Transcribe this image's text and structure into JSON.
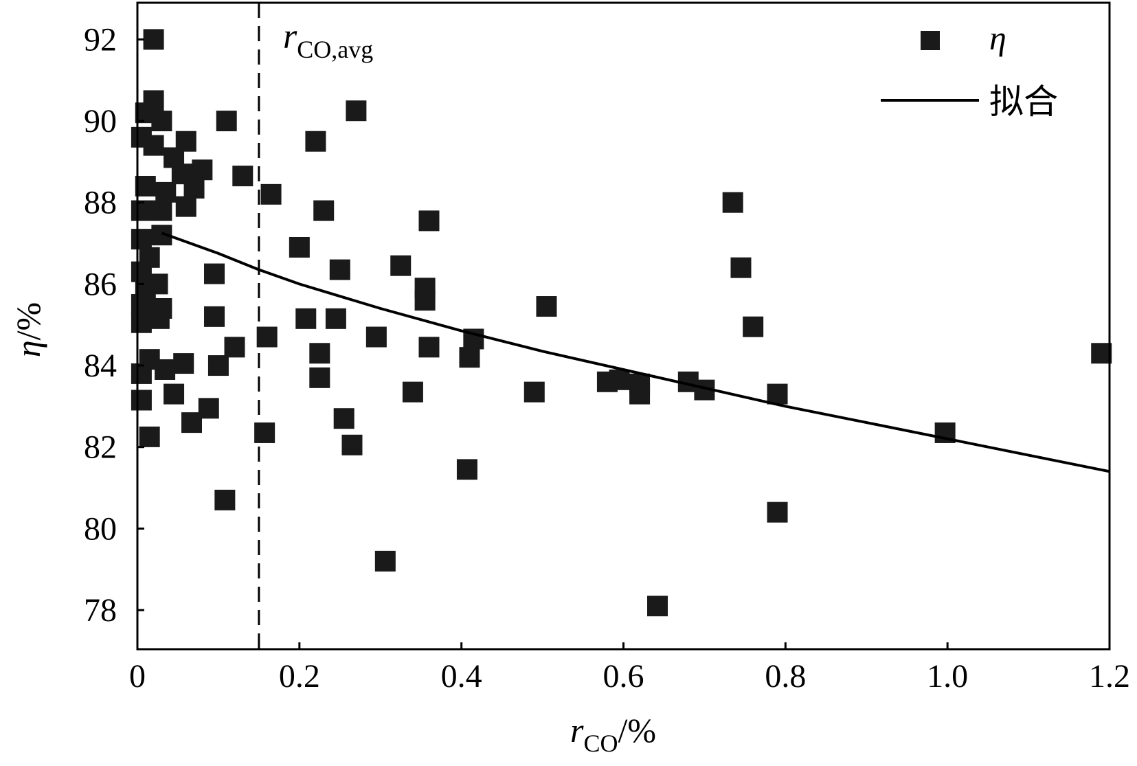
{
  "chart_data": {
    "type": "scatter",
    "title": "",
    "xlabel": {
      "main": "r",
      "sub": "CO",
      "suffix": "/%"
    },
    "ylabel": {
      "main": "η",
      "suffix": "/%"
    },
    "xlim": [
      0,
      1.2
    ],
    "ylim": [
      77.04,
      92.9
    ],
    "xticks": [
      0,
      0.2,
      0.4,
      0.6,
      0.8,
      1.0,
      1.2
    ],
    "xtick_labels": [
      "0",
      "0.2",
      "0.4",
      "0.6",
      "0.8",
      "1.0",
      "1.2"
    ],
    "yticks": [
      78,
      80,
      82,
      84,
      86,
      88,
      90,
      92
    ],
    "ytick_labels": [
      "78",
      "80",
      "82",
      "84",
      "86",
      "88",
      "90",
      "92"
    ],
    "grid": false,
    "legend": {
      "placement": "top-right",
      "entries": [
        {
          "label": "η",
          "marker": "square"
        },
        {
          "label": "拟合",
          "marker": "line"
        }
      ]
    },
    "reference_line": {
      "x": 0.15,
      "style": "dashed",
      "label_main": "r",
      "label_sub": "CO,avg"
    },
    "series": [
      {
        "name": "η",
        "kind": "scatter",
        "points": [
          [
            0.02,
            92.0
          ],
          [
            0.02,
            90.5
          ],
          [
            0.01,
            90.2
          ],
          [
            0.03,
            90.0
          ],
          [
            0.11,
            90.0
          ],
          [
            0.27,
            90.25
          ],
          [
            0.22,
            89.5
          ],
          [
            0.06,
            89.5
          ],
          [
            0.005,
            89.6
          ],
          [
            0.02,
            89.4
          ],
          [
            0.045,
            89.1
          ],
          [
            0.08,
            88.8
          ],
          [
            0.13,
            88.65
          ],
          [
            0.055,
            88.7
          ],
          [
            0.07,
            88.35
          ],
          [
            0.165,
            88.2
          ],
          [
            0.01,
            88.4
          ],
          [
            0.035,
            88.25
          ],
          [
            0.06,
            87.9
          ],
          [
            0.03,
            87.8
          ],
          [
            0.005,
            87.8
          ],
          [
            0.23,
            87.8
          ],
          [
            0.36,
            87.55
          ],
          [
            0.735,
            88.0
          ],
          [
            0.03,
            87.2
          ],
          [
            0.005,
            87.1
          ],
          [
            0.2,
            86.9
          ],
          [
            0.325,
            86.45
          ],
          [
            0.015,
            86.65
          ],
          [
            0.745,
            86.4
          ],
          [
            0.25,
            86.35
          ],
          [
            0.095,
            86.25
          ],
          [
            0.005,
            86.3
          ],
          [
            0.025,
            86.0
          ],
          [
            0.355,
            85.9
          ],
          [
            0.01,
            85.85
          ],
          [
            0.355,
            85.6
          ],
          [
            0.03,
            85.4
          ],
          [
            0.005,
            85.5
          ],
          [
            0.505,
            85.45
          ],
          [
            0.027,
            85.15
          ],
          [
            0.095,
            85.2
          ],
          [
            0.208,
            85.15
          ],
          [
            0.245,
            85.15
          ],
          [
            0.005,
            85.05
          ],
          [
            0.76,
            84.95
          ],
          [
            0.16,
            84.7
          ],
          [
            0.295,
            84.7
          ],
          [
            0.415,
            84.65
          ],
          [
            0.12,
            84.45
          ],
          [
            0.36,
            84.45
          ],
          [
            0.225,
            84.3
          ],
          [
            0.41,
            84.2
          ],
          [
            1.19,
            84.3
          ],
          [
            0.015,
            84.15
          ],
          [
            0.057,
            84.05
          ],
          [
            0.1,
            84.0
          ],
          [
            0.034,
            83.9
          ],
          [
            0.005,
            83.8
          ],
          [
            0.225,
            83.7
          ],
          [
            0.58,
            83.6
          ],
          [
            0.595,
            83.65
          ],
          [
            0.62,
            83.55
          ],
          [
            0.68,
            83.6
          ],
          [
            0.7,
            83.4
          ],
          [
            0.62,
            83.3
          ],
          [
            0.34,
            83.35
          ],
          [
            0.49,
            83.35
          ],
          [
            0.045,
            83.3
          ],
          [
            0.79,
            83.3
          ],
          [
            0.005,
            83.15
          ],
          [
            0.088,
            82.95
          ],
          [
            0.067,
            82.6
          ],
          [
            0.255,
            82.7
          ],
          [
            0.015,
            82.25
          ],
          [
            0.157,
            82.35
          ],
          [
            0.265,
            82.05
          ],
          [
            0.997,
            82.35
          ],
          [
            0.407,
            81.45
          ],
          [
            0.108,
            80.7
          ],
          [
            0.79,
            80.4
          ],
          [
            0.306,
            79.2
          ],
          [
            0.642,
            78.1
          ]
        ]
      },
      {
        "name": "拟合",
        "kind": "line",
        "points": [
          [
            0.03,
            87.25
          ],
          [
            0.1,
            86.75
          ],
          [
            0.15,
            86.35
          ],
          [
            0.2,
            86.0
          ],
          [
            0.3,
            85.4
          ],
          [
            0.4,
            84.85
          ],
          [
            0.5,
            84.35
          ],
          [
            0.6,
            83.9
          ],
          [
            0.7,
            83.45
          ],
          [
            0.8,
            83.0
          ],
          [
            0.9,
            82.6
          ],
          [
            1.0,
            82.2
          ],
          [
            1.1,
            81.8
          ],
          [
            1.2,
            81.4
          ]
        ]
      }
    ]
  }
}
